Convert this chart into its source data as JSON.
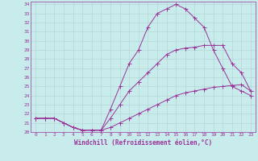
{
  "bg_color": "#c8ecec",
  "grid_color": "#b0d0d0",
  "line_color": "#993399",
  "spine_color": "#993399",
  "xlim_min": -0.5,
  "xlim_max": 23.5,
  "ylim_min": 20,
  "ylim_max": 34.3,
  "xlabel": "Windchill (Refroidissement éolien,°C)",
  "xticks": [
    0,
    1,
    2,
    3,
    4,
    5,
    6,
    7,
    8,
    9,
    10,
    11,
    12,
    13,
    14,
    15,
    16,
    17,
    18,
    19,
    20,
    21,
    22,
    23
  ],
  "yticks": [
    20,
    21,
    22,
    23,
    24,
    25,
    26,
    27,
    28,
    29,
    30,
    31,
    32,
    33,
    34
  ],
  "line1_x": [
    0,
    1,
    2,
    3,
    4,
    5,
    6,
    7,
    8,
    9,
    10,
    11,
    12,
    13,
    14,
    15,
    16,
    17,
    18,
    19,
    20,
    21,
    22,
    23
  ],
  "line1_y": [
    21.5,
    21.5,
    21.5,
    21.0,
    20.5,
    20.2,
    20.2,
    20.2,
    22.5,
    25.0,
    27.5,
    29.0,
    31.5,
    33.0,
    33.5,
    34.0,
    33.5,
    32.5,
    31.5,
    29.0,
    27.0,
    25.0,
    24.5,
    24.0
  ],
  "line2_x": [
    0,
    1,
    2,
    3,
    4,
    5,
    6,
    7,
    8,
    9,
    10,
    11,
    12,
    13,
    14,
    15,
    16,
    17,
    18,
    19,
    20,
    21,
    22,
    23
  ],
  "line2_y": [
    21.5,
    21.5,
    21.5,
    21.0,
    20.5,
    20.2,
    20.2,
    20.2,
    21.5,
    23.0,
    24.5,
    25.5,
    26.5,
    27.5,
    28.5,
    29.0,
    29.2,
    29.3,
    29.5,
    29.5,
    29.5,
    27.5,
    26.5,
    24.5
  ],
  "line3_x": [
    0,
    1,
    2,
    3,
    4,
    5,
    6,
    7,
    8,
    9,
    10,
    11,
    12,
    13,
    14,
    15,
    16,
    17,
    18,
    19,
    20,
    21,
    22,
    23
  ],
  "line3_y": [
    21.5,
    21.5,
    21.5,
    21.0,
    20.5,
    20.2,
    20.2,
    20.2,
    20.5,
    21.0,
    21.5,
    22.0,
    22.5,
    23.0,
    23.5,
    24.0,
    24.3,
    24.5,
    24.7,
    24.9,
    25.0,
    25.1,
    25.2,
    24.5
  ],
  "xlabel_fontsize": 5.5,
  "tick_fontsize": 4.5,
  "marker_size": 2.0,
  "line_width": 0.7
}
